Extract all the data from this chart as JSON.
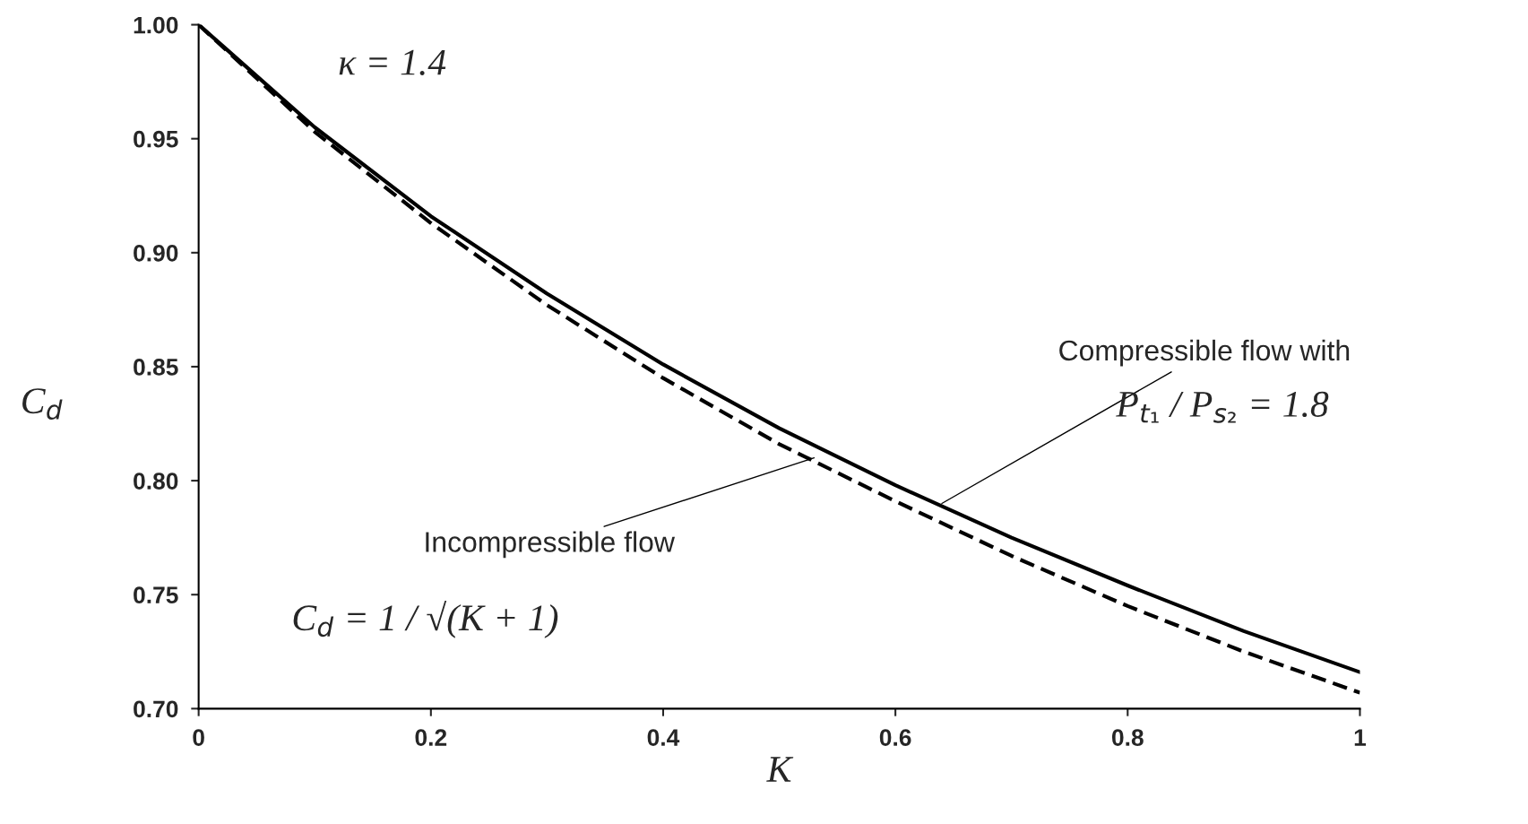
{
  "chart_data": {
    "type": "line",
    "xlabel": "K",
    "ylabel": "C$_{d}$",
    "x": [
      0,
      0.1,
      0.2,
      0.3,
      0.4,
      0.5,
      0.6,
      0.7,
      0.8,
      0.9,
      1
    ],
    "series": [
      {
        "color": "#000000",
        "line_style": "solid",
        "values": [
          1.0,
          0.955,
          0.916,
          0.882,
          0.851,
          0.823,
          0.798,
          0.775,
          0.754,
          0.734,
          0.716
        ]
      },
      {
        "color": "#000000",
        "line_style": "dashed",
        "values": [
          1.0,
          0.953,
          0.913,
          0.877,
          0.845,
          0.816,
          0.791,
          0.767,
          0.745,
          0.725,
          0.707
        ]
      }
    ],
    "xlim": [
      0,
      1
    ],
    "xticks": [
      0,
      0.2,
      0.4,
      0.6,
      0.8,
      1
    ],
    "ylim": [
      0.7,
      1.0
    ],
    "yticks": [
      {
        "value": 0.7,
        "label": "0.70"
      },
      {
        "value": 0.75,
        "label": "0.75"
      },
      {
        "value": 0.8,
        "label": "0.80"
      },
      {
        "value": 0.85,
        "label": "0.85"
      },
      {
        "value": 0.9,
        "label": "0.90"
      },
      {
        "value": 0.95,
        "label": "0.95"
      },
      {
        "value": 1.0,
        "label": "1.00"
      }
    ],
    "grid": false,
    "marker": "none",
    "annotations": [
      "κ = 1.4",
      {
        "text": "Compressible flow with",
        "x": 0.64,
        "y": 0.79
      },
      "P$_{t₁}$ / P$_{s₂}$ = 1.8",
      {
        "text": "Incompressible flow",
        "x": 0.53,
        "y": 0.81
      },
      "C$_{d}$ = 1 / √(K + 1)"
    ]
  }
}
